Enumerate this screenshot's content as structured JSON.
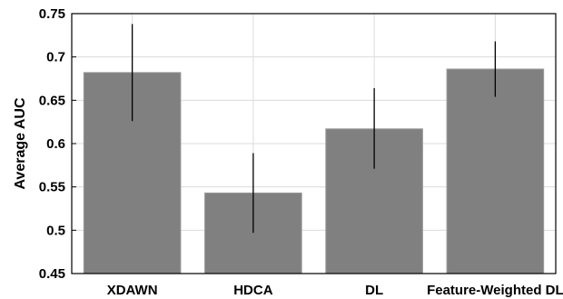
{
  "chart_data": {
    "type": "bar",
    "title": "",
    "xlabel": "",
    "ylabel": "Average AUC",
    "categories": [
      "XDAWN",
      "HDCA",
      "DL",
      "Feature-Weighted DL"
    ],
    "values": [
      0.682,
      0.543,
      0.617,
      0.686
    ],
    "error_low": [
      0.626,
      0.497,
      0.571,
      0.654
    ],
    "error_high": [
      0.738,
      0.589,
      0.664,
      0.718
    ],
    "ylim": [
      0.45,
      0.75
    ],
    "yticks": [
      0.45,
      0.5,
      0.55,
      0.6,
      0.65,
      0.7,
      0.75
    ],
    "ytick_labels": [
      "0.45",
      "0.5",
      "0.55",
      "0.6",
      "0.65",
      "0.7",
      "0.75"
    ],
    "grid": true,
    "bar_color": "#808080",
    "error_color": "#000000"
  }
}
